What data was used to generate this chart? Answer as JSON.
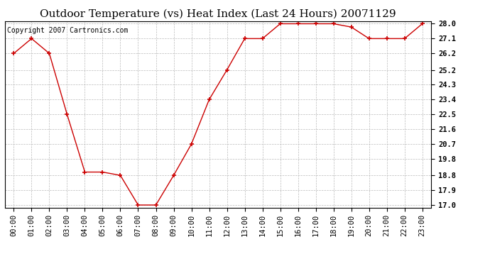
{
  "title": "Outdoor Temperature (vs) Heat Index (Last 24 Hours) 20071129",
  "copyright_text": "Copyright 2007 Cartronics.com",
  "x_labels": [
    "00:00",
    "01:00",
    "02:00",
    "03:00",
    "04:00",
    "05:00",
    "06:00",
    "07:00",
    "08:00",
    "09:00",
    "10:00",
    "11:00",
    "12:00",
    "13:00",
    "14:00",
    "15:00",
    "16:00",
    "17:00",
    "18:00",
    "19:00",
    "20:00",
    "21:00",
    "22:00",
    "23:00"
  ],
  "y_values": [
    26.2,
    27.1,
    26.2,
    22.5,
    19.0,
    19.0,
    18.8,
    17.0,
    17.0,
    18.8,
    20.7,
    23.4,
    25.2,
    27.1,
    27.1,
    28.0,
    28.0,
    28.0,
    28.0,
    27.8,
    27.1,
    27.1,
    27.1,
    28.0
  ],
  "line_color": "#cc0000",
  "marker": "+",
  "marker_size": 5,
  "marker_color": "#cc0000",
  "background_color": "#ffffff",
  "plot_bg_color": "#ffffff",
  "grid_color": "#bbbbbb",
  "y_min": 17.0,
  "y_max": 28.0,
  "y_ticks": [
    17.0,
    17.9,
    18.8,
    19.8,
    20.7,
    21.6,
    22.5,
    23.4,
    24.3,
    25.2,
    26.2,
    27.1,
    28.0
  ],
  "title_fontsize": 11,
  "tick_fontsize": 7.5,
  "copyright_fontsize": 7
}
